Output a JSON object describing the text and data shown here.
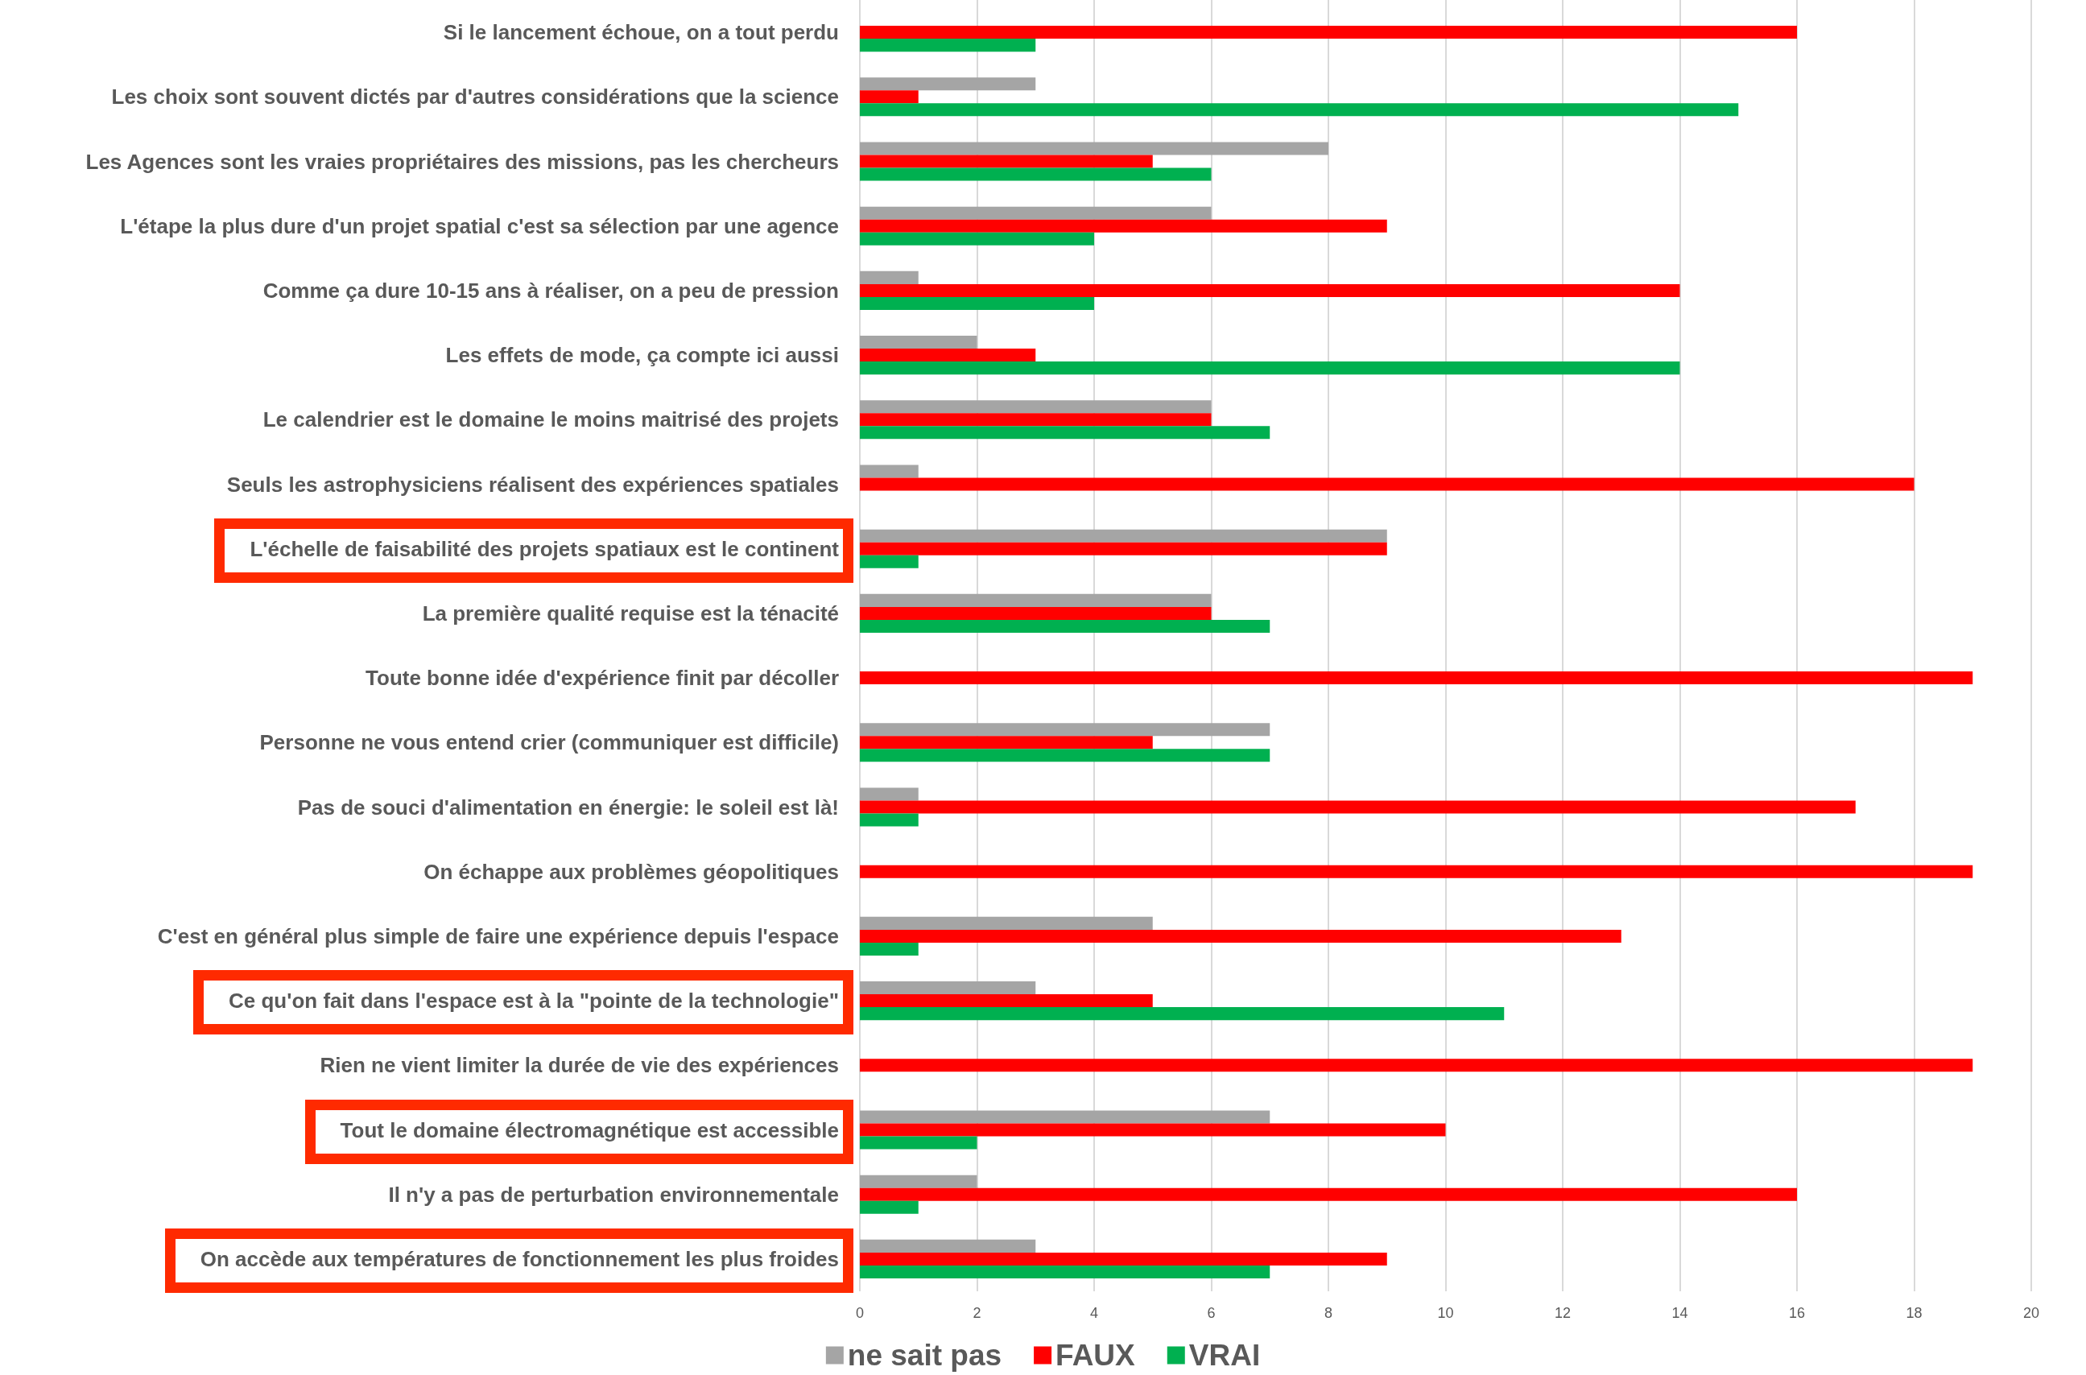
{
  "chart_data": {
    "type": "bar",
    "orientation": "horizontal",
    "categories": [
      "Si le lancement échoue, on a tout perdu",
      "Les choix sont souvent dictés par d'autres considérations que la science",
      "Les Agences sont les vraies propriétaires des missions, pas les chercheurs",
      "L'étape la plus dure d'un projet spatial c'est sa sélection par une agence",
      "Comme ça dure 10-15 ans à réaliser, on a peu de pression",
      "Les effets de mode, ça compte ici aussi",
      "Le calendrier est le domaine le moins maitrisé des projets",
      "Seuls les astrophysiciens réalisent des expériences spatiales",
      "L'échelle de faisabilité des projets spatiaux est le continent",
      "La première qualité requise est la ténacité",
      "Toute bonne idée d'expérience finit par décoller",
      "Personne ne vous entend crier (communiquer est difficile)",
      "Pas de souci d'alimentation en énergie: le soleil est là!",
      "On échappe aux problèmes géopolitiques",
      "C'est en général plus simple de faire une expérience depuis l'espace",
      "Ce qu'on fait dans l'espace est à la \"pointe de la technologie\"",
      "Rien ne vient limiter la durée de vie des expériences",
      "Tout le domaine électromagnétique est accessible",
      "Il n'y a pas de perturbation environnementale",
      "On accède aux températures de fonctionnement les plus froides"
    ],
    "series": [
      {
        "name": "ne sait pas",
        "color": "#a5a5a5",
        "values": [
          0,
          3,
          8,
          6,
          1,
          2,
          6,
          1,
          9,
          6,
          0,
          7,
          1,
          0,
          5,
          3,
          0,
          7,
          2,
          3
        ]
      },
      {
        "name": "FAUX",
        "color": "#ff0000",
        "values": [
          16,
          1,
          5,
          9,
          14,
          3,
          6,
          18,
          9,
          6,
          19,
          5,
          17,
          19,
          13,
          5,
          19,
          10,
          16,
          9
        ]
      },
      {
        "name": "VRAI",
        "color": "#00b050",
        "values": [
          3,
          15,
          6,
          4,
          4,
          14,
          7,
          0,
          1,
          7,
          0,
          7,
          1,
          0,
          1,
          11,
          0,
          2,
          1,
          7
        ]
      }
    ],
    "xlim": [
      0,
      20
    ],
    "xticks": [
      0,
      2,
      4,
      6,
      8,
      10,
      12,
      14,
      16,
      18,
      20
    ],
    "grid": "x",
    "legend": "bottom"
  }
}
